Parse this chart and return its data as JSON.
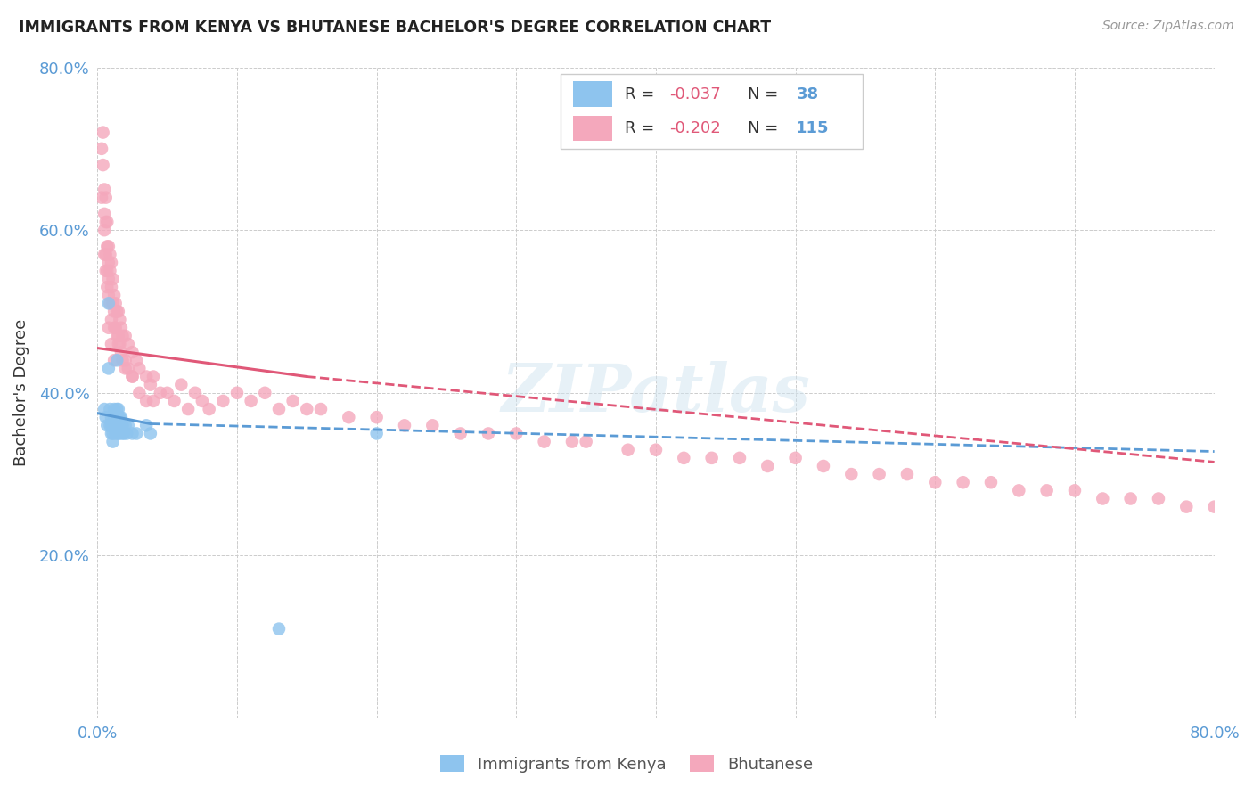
{
  "title": "IMMIGRANTS FROM KENYA VS BHUTANESE BACHELOR'S DEGREE CORRELATION CHART",
  "source": "Source: ZipAtlas.com",
  "ylabel": "Bachelor's Degree",
  "xlim": [
    0.0,
    0.8
  ],
  "ylim": [
    0.0,
    0.8
  ],
  "xtick_positions": [
    0.0,
    0.1,
    0.2,
    0.3,
    0.4,
    0.5,
    0.6,
    0.7,
    0.8
  ],
  "ytick_positions": [
    0.0,
    0.2,
    0.4,
    0.6,
    0.8
  ],
  "xtick_labels": [
    "0.0%",
    "",
    "",
    "",
    "",
    "",
    "",
    "",
    "80.0%"
  ],
  "ytick_labels": [
    "",
    "20.0%",
    "40.0%",
    "60.0%",
    "80.0%"
  ],
  "watermark": "ZIPatlas",
  "color_kenya": "#8ec4ee",
  "color_bhutan": "#f4a8bc",
  "color_line_kenya": "#5b9bd5",
  "color_line_bhutan": "#e05878",
  "kenya_trend_x0": 0.0,
  "kenya_trend_y0": 0.375,
  "kenya_trend_x1": 0.038,
  "kenya_trend_y1": 0.362,
  "kenya_trend_xdash_end": 0.8,
  "kenya_trend_ydash_end": 0.328,
  "bhutan_trend_x0": 0.0,
  "bhutan_trend_y0": 0.455,
  "bhutan_trend_x1": 0.15,
  "bhutan_trend_y1": 0.42,
  "bhutan_trend_xdash_end": 0.8,
  "bhutan_trend_ydash_end": 0.315,
  "kenya_x": [
    0.005,
    0.006,
    0.007,
    0.008,
    0.008,
    0.009,
    0.009,
    0.01,
    0.01,
    0.01,
    0.011,
    0.011,
    0.011,
    0.012,
    0.012,
    0.013,
    0.013,
    0.014,
    0.014,
    0.015,
    0.015,
    0.015,
    0.016,
    0.016,
    0.017,
    0.017,
    0.018,
    0.018,
    0.019,
    0.02,
    0.021,
    0.022,
    0.025,
    0.028,
    0.035,
    0.038,
    0.2,
    0.13
  ],
  "kenya_y": [
    0.38,
    0.37,
    0.36,
    0.43,
    0.51,
    0.38,
    0.36,
    0.37,
    0.36,
    0.35,
    0.36,
    0.35,
    0.34,
    0.38,
    0.37,
    0.36,
    0.35,
    0.38,
    0.44,
    0.38,
    0.37,
    0.35,
    0.37,
    0.35,
    0.37,
    0.36,
    0.36,
    0.35,
    0.35,
    0.36,
    0.35,
    0.36,
    0.35,
    0.35,
    0.36,
    0.35,
    0.35,
    0.11
  ],
  "bhutan_x": [
    0.003,
    0.003,
    0.004,
    0.004,
    0.005,
    0.005,
    0.005,
    0.005,
    0.006,
    0.006,
    0.006,
    0.006,
    0.007,
    0.007,
    0.007,
    0.007,
    0.008,
    0.008,
    0.008,
    0.008,
    0.009,
    0.009,
    0.009,
    0.01,
    0.01,
    0.01,
    0.011,
    0.011,
    0.012,
    0.012,
    0.012,
    0.013,
    0.013,
    0.014,
    0.014,
    0.015,
    0.015,
    0.016,
    0.016,
    0.017,
    0.017,
    0.018,
    0.018,
    0.02,
    0.02,
    0.022,
    0.022,
    0.025,
    0.025,
    0.028,
    0.03,
    0.03,
    0.035,
    0.035,
    0.038,
    0.04,
    0.04,
    0.045,
    0.05,
    0.055,
    0.06,
    0.065,
    0.07,
    0.075,
    0.08,
    0.09,
    0.1,
    0.11,
    0.12,
    0.13,
    0.14,
    0.15,
    0.16,
    0.18,
    0.2,
    0.22,
    0.24,
    0.26,
    0.28,
    0.3,
    0.32,
    0.34,
    0.35,
    0.38,
    0.4,
    0.42,
    0.44,
    0.46,
    0.48,
    0.5,
    0.52,
    0.54,
    0.56,
    0.58,
    0.6,
    0.62,
    0.64,
    0.66,
    0.68,
    0.7,
    0.72,
    0.74,
    0.76,
    0.78,
    0.8,
    0.008,
    0.01,
    0.012,
    0.015,
    0.02,
    0.025
  ],
  "bhutan_y": [
    0.64,
    0.7,
    0.68,
    0.72,
    0.65,
    0.62,
    0.6,
    0.57,
    0.64,
    0.61,
    0.57,
    0.55,
    0.61,
    0.58,
    0.55,
    0.53,
    0.58,
    0.56,
    0.54,
    0.52,
    0.57,
    0.55,
    0.51,
    0.56,
    0.53,
    0.49,
    0.54,
    0.51,
    0.52,
    0.5,
    0.48,
    0.51,
    0.48,
    0.5,
    0.47,
    0.5,
    0.47,
    0.49,
    0.46,
    0.48,
    0.45,
    0.47,
    0.44,
    0.47,
    0.43,
    0.46,
    0.43,
    0.45,
    0.42,
    0.44,
    0.43,
    0.4,
    0.42,
    0.39,
    0.41,
    0.42,
    0.39,
    0.4,
    0.4,
    0.39,
    0.41,
    0.38,
    0.4,
    0.39,
    0.38,
    0.39,
    0.4,
    0.39,
    0.4,
    0.38,
    0.39,
    0.38,
    0.38,
    0.37,
    0.37,
    0.36,
    0.36,
    0.35,
    0.35,
    0.35,
    0.34,
    0.34,
    0.34,
    0.33,
    0.33,
    0.32,
    0.32,
    0.32,
    0.31,
    0.32,
    0.31,
    0.3,
    0.3,
    0.3,
    0.29,
    0.29,
    0.29,
    0.28,
    0.28,
    0.28,
    0.27,
    0.27,
    0.27,
    0.26,
    0.26,
    0.48,
    0.46,
    0.44,
    0.46,
    0.44,
    0.42
  ]
}
